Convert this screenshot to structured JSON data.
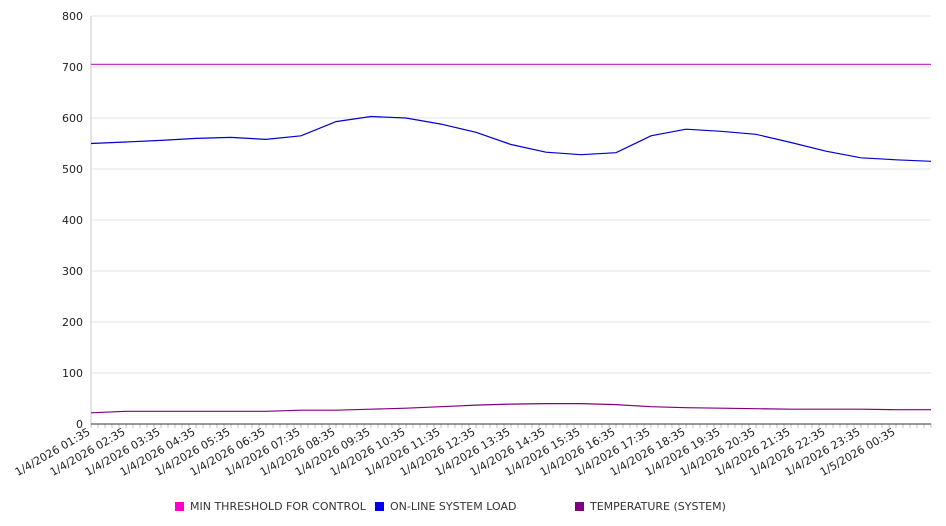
{
  "chart_data": {
    "type": "line",
    "title": "",
    "xlabel": "",
    "ylabel": "",
    "ylim": [
      0,
      800
    ],
    "y_ticks": [
      "0",
      "100",
      "200",
      "300",
      "400",
      "500",
      "600",
      "700",
      "800"
    ],
    "grid": "horizontal",
    "legend_position": "bottom",
    "x_tick_labels": [
      "1/4/2026 01:35",
      "1/4/2026 02:35",
      "1/4/2026 03:35",
      "1/4/2026 04:35",
      "1/4/2026 05:35",
      "1/4/2026 06:35",
      "1/4/2026 07:35",
      "1/4/2026 08:35",
      "1/4/2026 09:35",
      "1/4/2026 10:35",
      "1/4/2026 11:35",
      "1/4/2026 12:35",
      "1/4/2026 13:35",
      "1/4/2026 14:35",
      "1/4/2026 15:35",
      "1/4/2026 16:35",
      "1/4/2026 17:35",
      "1/4/2026 18:35",
      "1/4/2026 19:35",
      "1/4/2026 20:35",
      "1/4/2026 21:35",
      "1/4/2026 22:35",
      "1/4/2026 23:35",
      "1/5/2026 00:35"
    ],
    "x": [
      "1/4/2026 01:35",
      "1/4/2026 02:35",
      "1/4/2026 03:35",
      "1/4/2026 04:35",
      "1/4/2026 05:35",
      "1/4/2026 06:35",
      "1/4/2026 07:35",
      "1/4/2026 08:35",
      "1/4/2026 09:35",
      "1/4/2026 10:35",
      "1/4/2026 11:35",
      "1/4/2026 12:35",
      "1/4/2026 13:35",
      "1/4/2026 14:35",
      "1/4/2026 15:35",
      "1/4/2026 16:35",
      "1/4/2026 17:35",
      "1/4/2026 18:35",
      "1/4/2026 19:35",
      "1/4/2026 20:35",
      "1/4/2026 21:35",
      "1/4/2026 22:35",
      "1/4/2026 23:35",
      "1/5/2026 00:35",
      "1/5/2026 01:35"
    ],
    "series": [
      {
        "name": "MIN THRESHOLD FOR CONTROL",
        "color": "#cc33cc",
        "values": [
          705,
          705,
          705,
          705,
          705,
          705,
          705,
          705,
          705,
          705,
          705,
          705,
          705,
          705,
          705,
          705,
          705,
          705,
          705,
          705,
          705,
          705,
          705,
          705,
          705
        ]
      },
      {
        "name": "ON-LINE SYSTEM LOAD",
        "color": "#0000cc",
        "values": [
          550,
          553,
          556,
          560,
          562,
          558,
          565,
          593,
          603,
          600,
          588,
          572,
          548,
          533,
          528,
          532,
          565,
          578,
          574,
          568,
          552,
          535,
          522,
          518,
          515
        ]
      },
      {
        "name": "TEMPERATURE (SYSTEM)",
        "color": "#800080",
        "values": [
          22,
          25,
          25,
          25,
          25,
          25,
          27,
          27,
          29,
          31,
          34,
          37,
          39,
          40,
          40,
          38,
          34,
          32,
          31,
          30,
          29,
          29,
          29,
          28,
          28
        ]
      }
    ]
  },
  "legend": {
    "items": [
      {
        "label": "MIN THRESHOLD FOR CONTROL",
        "color": "#ff00cc"
      },
      {
        "label": "ON-LINE SYSTEM LOAD",
        "color": "#0000ee"
      },
      {
        "label": "TEMPERATURE (SYSTEM)",
        "color": "#800080"
      }
    ]
  }
}
